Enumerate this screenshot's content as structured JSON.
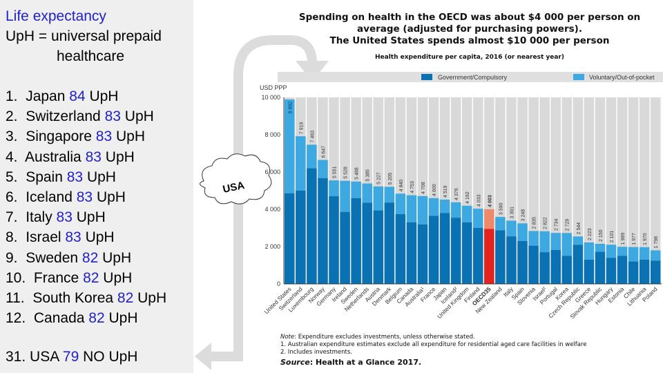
{
  "left_panel": {
    "heading": "Life expectancy",
    "definition_line1": "UpH = universal prepaid",
    "definition_line2": "healthcare",
    "ranking": [
      {
        "rank": "1.",
        "country": "Japan",
        "age": "84",
        "suffix": "UpH"
      },
      {
        "rank": "2.",
        "country": "Switzerland",
        "age": "83",
        "suffix": "UpH"
      },
      {
        "rank": "3.",
        "country": "Singapore",
        "age": "83",
        "suffix": "UpH"
      },
      {
        "rank": "4.",
        "country": "Australia",
        "age": "83",
        "suffix": "UpH"
      },
      {
        "rank": "5.",
        "country": "Spain",
        "age": "83",
        "suffix": "UpH"
      },
      {
        "rank": "6.",
        "country": "Iceland",
        "age": "83",
        "suffix": "UpH"
      },
      {
        "rank": "7.",
        "country": "Italy",
        "age": "83",
        "suffix": "UpH"
      },
      {
        "rank": "8.",
        "country": "Israel ",
        "age": "83",
        "suffix": "UpH"
      },
      {
        "rank": "9.",
        "country": "Sweden",
        "age": "82",
        "suffix": "UpH"
      },
      {
        "rank": "10.",
        "country": "France",
        "age": "82",
        "suffix": "UpH"
      },
      {
        "rank": "11.",
        "country": "South Korea",
        "age": "82",
        "suffix": "UpH"
      },
      {
        "rank": "12.",
        "country": "Canada",
        "age": "82",
        "suffix": "UpH"
      }
    ],
    "usa": {
      "rank": "31.",
      "country": "USA",
      "age": "79",
      "suffix": " NO UpH"
    }
  },
  "callout": {
    "label": "USA"
  },
  "headline": {
    "line1": "Spending on health in the OECD was about $4 000 per person on",
    "line2": "average (adjusted for purchasing powers).",
    "line3": "The United States spends almost $10 000 per person"
  },
  "notes": {
    "note_label": "Note",
    "note": ": Expenditure excludes investments, unless otherwise stated.",
    "n1": "1. Australian expenditure estimates exclude all expenditure for residential aged care facilities in welfare",
    "n2": "2. Includes investments.",
    "source_label": "Source",
    "source": ": Health at a Glance 2017."
  },
  "colors": {
    "government": "#0a72b3",
    "voluntary": "#3ea8e0",
    "oecd_gov": "#e3231d",
    "oecd_vol": "#f0896a",
    "column_bg": "#d9d9d9"
  },
  "chart_data": {
    "type": "bar",
    "stacked": true,
    "title": "Health expenditure per capita, 2016 (or nearest year)",
    "ylabel": "USD PPP",
    "ylim": [
      0,
      10000
    ],
    "yticks": [
      0,
      2000,
      4000,
      6000,
      8000,
      10000
    ],
    "ytick_labels": [
      "0",
      "2 000",
      "4 000",
      "6 000",
      "8 000",
      "10 000"
    ],
    "legend": [
      "Government/Compulsory",
      "Voluntary/Out-of-pocket"
    ],
    "legend_position": "top",
    "categories": [
      "United States",
      "Switzerland",
      "Luxembourg",
      "Norway",
      "Germany",
      "Ireland",
      "Sweden",
      "Netherlands",
      "Austria",
      "Denmark",
      "Belgium",
      "Canada",
      "Australia¹",
      "France",
      "Japan",
      "Iceland²",
      "United Kingdom",
      "Finland",
      "OECD35",
      "New Zealand",
      "Italy",
      "Spain",
      "Slovenia",
      "Israel²",
      "Portugal",
      "Korea",
      "Czech Republic",
      "Greece",
      "Slovak Republic",
      "Hungary",
      "Estonia",
      "Chile",
      "Lithuania",
      "Poland"
    ],
    "totals": [
      9892,
      7919,
      7463,
      6647,
      5551,
      5528,
      5488,
      5385,
      5227,
      5205,
      4840,
      4753,
      4708,
      4600,
      4519,
      4376,
      4192,
      4033,
      4003,
      3590,
      3391,
      3248,
      2835,
      2822,
      2734,
      2729,
      2544,
      2223,
      2150,
      2101,
      1989,
      1977,
      1970,
      1798
    ],
    "total_labels": [
      "9 892",
      "7 919",
      "7 463",
      "6 647",
      "5 551",
      "5 528",
      "5 488",
      "5 385",
      "5 227",
      "5 205",
      "4 840",
      "4 753",
      "4 708",
      "4 600",
      "4 519",
      "4 376",
      "4 192",
      "4 033",
      "4 003",
      "3 590",
      "3 391",
      "3 248",
      "2 835",
      "2 822",
      "2 734",
      "2 729",
      "2 544",
      "2 223",
      "2 150",
      "2 101",
      "1 989",
      "1 977",
      "1 970",
      "1 798"
    ],
    "series": [
      {
        "name": "Government/Compulsory",
        "values": [
          4860,
          5000,
          6200,
          5670,
          4700,
          3860,
          4600,
          4350,
          3940,
          4360,
          3740,
          3300,
          3190,
          3650,
          3800,
          3550,
          3300,
          3000,
          2950,
          2870,
          2550,
          2300,
          2050,
          1700,
          1820,
          1500,
          2100,
          1300,
          1720,
          1400,
          1500,
          1200,
          1300,
          1250
        ]
      },
      {
        "name": "Voluntary/Out-of-pocket",
        "values": [
          5032,
          2919,
          1263,
          977,
          851,
          1668,
          888,
          1035,
          1287,
          845,
          1100,
          1453,
          1518,
          950,
          719,
          826,
          892,
          1033,
          1053,
          720,
          841,
          948,
          785,
          1122,
          914,
          1229,
          444,
          923,
          430,
          701,
          489,
          777,
          670,
          548
        ]
      }
    ],
    "highlight": "OECD35"
  }
}
